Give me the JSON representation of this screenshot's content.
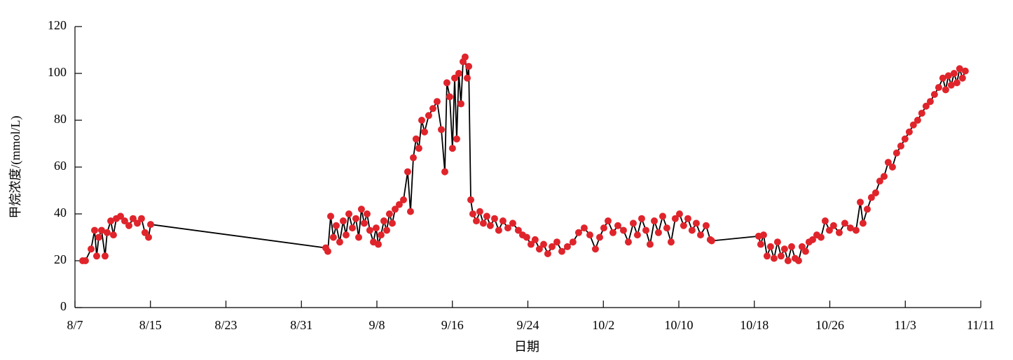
{
  "chart_data": {
    "type": "line",
    "x_label": "日期",
    "y_label": "甲烷浓度/(mmol/L)",
    "x": [
      219.82,
      220.11,
      220.71,
      221.08,
      221.3,
      221.52,
      221.82,
      222.19,
      222.41,
      222.79,
      223.08,
      223.38,
      223.83,
      224.27,
      224.72,
      225.16,
      225.61,
      226.05,
      226.42,
      226.8,
      227.02,
      245.58,
      245.8,
      246.1,
      246.39,
      246.69,
      247.06,
      247.43,
      247.73,
      248.03,
      248.4,
      248.77,
      249.07,
      249.36,
      249.66,
      249.96,
      250.25,
      250.63,
      250.92,
      251.15,
      251.44,
      251.74,
      252.04,
      252.33,
      252.63,
      252.93,
      253.37,
      253.82,
      254.26,
      254.56,
      254.86,
      255.15,
      255.45,
      255.75,
      256.05,
      256.49,
      256.94,
      257.38,
      257.83,
      258.2,
      258.42,
      258.72,
      259.01,
      259.24,
      259.46,
      259.68,
      259.91,
      260.13,
      260.35,
      260.58,
      260.73,
      260.95,
      261.17,
      261.54,
      261.91,
      262.28,
      262.65,
      263.02,
      263.47,
      263.91,
      264.36,
      264.88,
      265.4,
      265.99,
      266.44,
      266.88,
      267.33,
      267.77,
      268.22,
      268.67,
      269.11,
      269.56,
      270.08,
      270.6,
      271.19,
      271.78,
      272.38,
      272.97,
      273.57,
      274.16,
      274.61,
      275.05,
      275.5,
      276.02,
      276.54,
      277.13,
      277.65,
      278.17,
      278.61,
      279.06,
      279.51,
      279.95,
      280.4,
      280.84,
      281.29,
      281.73,
      282.18,
      282.62,
      283.07,
      283.51,
      283.96,
      284.4,
      284.85,
      285.3,
      285.89,
      286.33,
      286.48,
      291.46,
      291.68,
      291.98,
      292.35,
      292.72,
      293.09,
      293.46,
      293.83,
      294.2,
      294.57,
      294.95,
      295.32,
      295.69,
      296.06,
      296.43,
      296.8,
      297.18,
      297.62,
      298.07,
      298.51,
      298.96,
      299.4,
      300.0,
      300.59,
      301.18,
      301.78,
      302.23,
      302.52,
      302.97,
      303.41,
      303.86,
      304.3,
      304.75,
      305.19,
      305.64,
      306.08,
      306.53,
      306.97,
      307.42,
      307.86,
      308.31,
      308.75,
      309.2,
      309.65,
      310.09,
      310.54,
      310.98,
      311.28,
      311.57,
      311.87,
      312.17,
      312.47,
      312.76,
      313.06,
      313.36
    ],
    "values": [
      20,
      20,
      25,
      33,
      22,
      30,
      33,
      22,
      32,
      37,
      31,
      38,
      39,
      37,
      35,
      38,
      36,
      38,
      32,
      30,
      35.5,
      25.5,
      24,
      39,
      30,
      35,
      28,
      37,
      31,
      40,
      34,
      38,
      30,
      42,
      36,
      40,
      33,
      28,
      34,
      27,
      31,
      37,
      33,
      40,
      36,
      42,
      44,
      46,
      58,
      41,
      64,
      72,
      68,
      80,
      75,
      82,
      85,
      88,
      76,
      58,
      96,
      90,
      68,
      98,
      72,
      100,
      87,
      105,
      107,
      98,
      103,
      46,
      40,
      37,
      41,
      36,
      39,
      35,
      38,
      33,
      37,
      34,
      36,
      33,
      31,
      30,
      27,
      29,
      25,
      27,
      23,
      26,
      28,
      24,
      26,
      28,
      32,
      34,
      31,
      25,
      30,
      34,
      37,
      32,
      35,
      33,
      28,
      36,
      31,
      38,
      33,
      27,
      37,
      32,
      39,
      34,
      28,
      38,
      40,
      35,
      38,
      33,
      36,
      31,
      35,
      29,
      28.5,
      30.5,
      27,
      31,
      22,
      26,
      21,
      28,
      22,
      25,
      20,
      26,
      21,
      20,
      26,
      24,
      28,
      29,
      31,
      30,
      37,
      33,
      35,
      32,
      36,
      34,
      33,
      45,
      36,
      42,
      47,
      49,
      54,
      56,
      62,
      60,
      66,
      69,
      72,
      75,
      78,
      80,
      83,
      86,
      88,
      91,
      94,
      98,
      93,
      99,
      95,
      100,
      96,
      102,
      98,
      101
    ],
    "line_color": "#000000",
    "marker_color": "#e0242b",
    "xlim": [
      219,
      315
    ],
    "xticks": [
      {
        "value": 219,
        "label": "8/7"
      },
      {
        "value": 227,
        "label": "8/15"
      },
      {
        "value": 235,
        "label": "8/23"
      },
      {
        "value": 243,
        "label": "8/31"
      },
      {
        "value": 251,
        "label": "9/8"
      },
      {
        "value": 259,
        "label": "9/16"
      },
      {
        "value": 267,
        "label": "9/24"
      },
      {
        "value": 275,
        "label": "10/2"
      },
      {
        "value": 283,
        "label": "10/10"
      },
      {
        "value": 291,
        "label": "10/18"
      },
      {
        "value": 299,
        "label": "10/26"
      },
      {
        "value": 307,
        "label": "11/3"
      },
      {
        "value": 315,
        "label": "11/11"
      }
    ],
    "ylim": [
      0,
      120
    ],
    "yticks": [
      0,
      20,
      40,
      60,
      80,
      100,
      120
    ]
  }
}
